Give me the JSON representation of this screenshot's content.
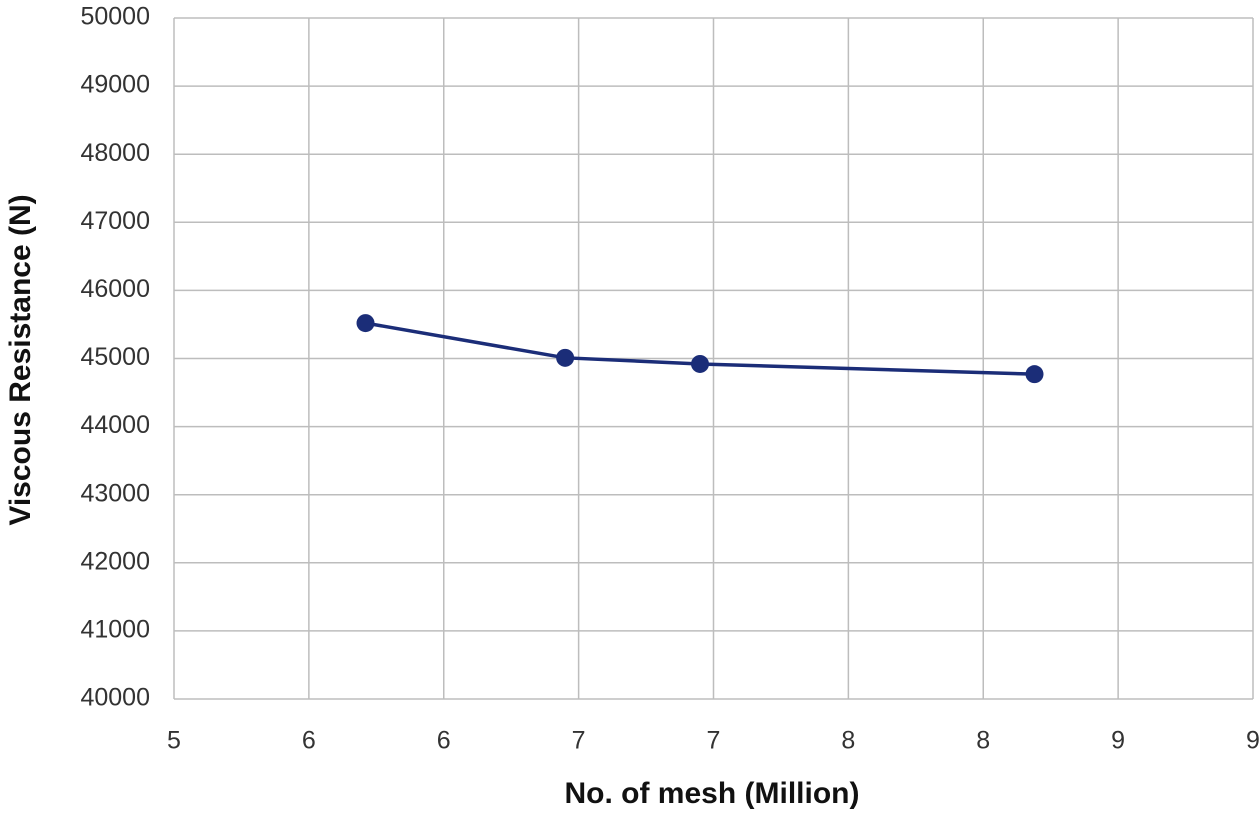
{
  "chart_data": {
    "type": "line",
    "x_label": "No. of mesh (Million)",
    "y_label": "Viscous Resistance (N)",
    "x": [
      5.71,
      6.45,
      6.95,
      8.19
    ],
    "series": [
      {
        "color": "#1b2d78",
        "values": [
          45520,
          45010,
          44920,
          44770
        ]
      }
    ],
    "xlim": [
      5,
      9
    ],
    "xticks": [
      5,
      {
        "value": 5.5,
        "label": "6"
      },
      6,
      {
        "value": 6.5,
        "label": "7"
      },
      7,
      {
        "value": 7.5,
        "label": "8"
      },
      8,
      {
        "value": 8.5,
        "label": "9"
      },
      9
    ],
    "ylim": [
      40000,
      50000
    ],
    "yticks": [
      40000,
      41000,
      42000,
      43000,
      44000,
      45000,
      46000,
      47000,
      48000,
      49000,
      50000
    ],
    "grid": true
  }
}
